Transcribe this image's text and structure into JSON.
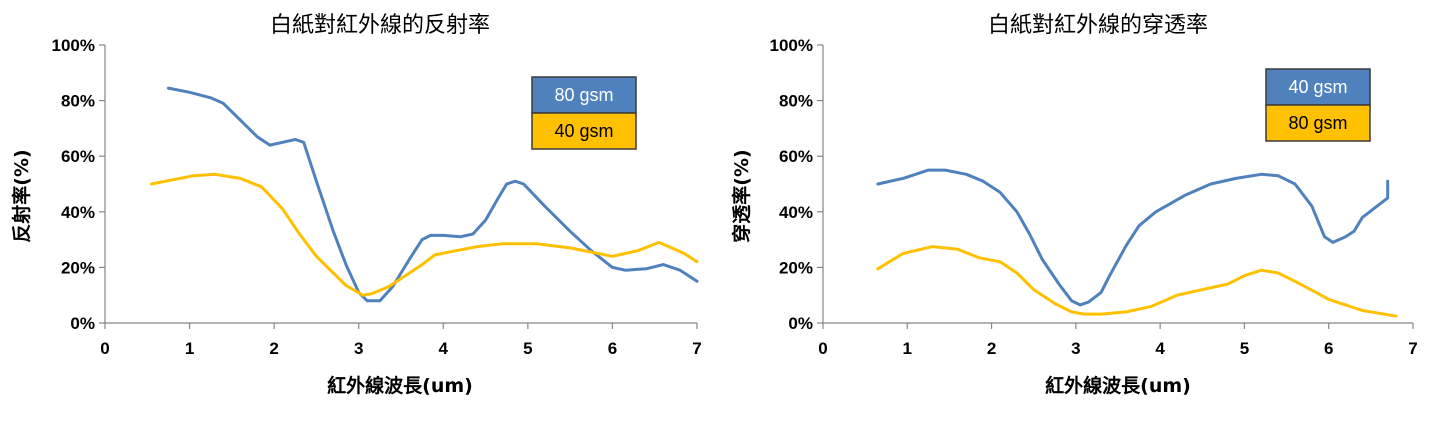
{
  "chart_data": [
    {
      "type": "line",
      "title": "白紙對紅外線的反射率",
      "xlabel": "紅外線波長(um)",
      "ylabel": "反射率(%)",
      "xlim": [
        0,
        7
      ],
      "ylim": [
        0,
        100
      ],
      "x_ticks": [
        "0",
        "1",
        "2",
        "3",
        "4",
        "5",
        "6",
        "7"
      ],
      "y_ticks": [
        "0%",
        "20%",
        "40%",
        "60%",
        "80%",
        "100%"
      ],
      "legend_position": "top-right",
      "legend": [
        "80 gsm",
        "40 gsm"
      ],
      "series": [
        {
          "name": "80 gsm",
          "color": "#4F81BD",
          "points": [
            [
              0.75,
              84.5
            ],
            [
              1.0,
              83
            ],
            [
              1.25,
              81
            ],
            [
              1.4,
              79
            ],
            [
              1.6,
              73
            ],
            [
              1.8,
              67
            ],
            [
              1.95,
              64
            ],
            [
              2.1,
              65
            ],
            [
              2.25,
              66
            ],
            [
              2.35,
              65
            ],
            [
              2.5,
              51
            ],
            [
              2.7,
              33
            ],
            [
              2.85,
              21
            ],
            [
              3.0,
              11
            ],
            [
              3.1,
              8
            ],
            [
              3.25,
              8
            ],
            [
              3.4,
              13
            ],
            [
              3.6,
              23
            ],
            [
              3.75,
              30
            ],
            [
              3.85,
              31.5
            ],
            [
              4.0,
              31.5
            ],
            [
              4.2,
              31
            ],
            [
              4.35,
              32
            ],
            [
              4.5,
              37
            ],
            [
              4.65,
              45
            ],
            [
              4.75,
              50
            ],
            [
              4.85,
              51
            ],
            [
              4.95,
              50
            ],
            [
              5.2,
              42
            ],
            [
              5.5,
              33
            ],
            [
              5.75,
              26
            ],
            [
              6.0,
              20
            ],
            [
              6.15,
              19
            ],
            [
              6.4,
              19.5
            ],
            [
              6.6,
              21
            ],
            [
              6.8,
              19
            ],
            [
              7.0,
              15
            ]
          ]
        },
        {
          "name": "40 gsm",
          "color": "#FFC000",
          "points": [
            [
              0.55,
              50
            ],
            [
              0.8,
              51.5
            ],
            [
              1.05,
              53
            ],
            [
              1.3,
              53.5
            ],
            [
              1.6,
              52
            ],
            [
              1.85,
              49
            ],
            [
              2.1,
              41
            ],
            [
              2.3,
              32
            ],
            [
              2.5,
              24
            ],
            [
              2.7,
              18
            ],
            [
              2.85,
              13.5
            ],
            [
              3.05,
              10
            ],
            [
              3.15,
              10.5
            ],
            [
              3.35,
              13
            ],
            [
              3.6,
              18
            ],
            [
              3.75,
              21
            ],
            [
              3.9,
              24.5
            ],
            [
              4.15,
              26
            ],
            [
              4.4,
              27.5
            ],
            [
              4.7,
              28.5
            ],
            [
              5.1,
              28.5
            ],
            [
              5.5,
              27
            ],
            [
              5.75,
              25.5
            ],
            [
              6.0,
              24
            ],
            [
              6.3,
              26
            ],
            [
              6.55,
              29
            ],
            [
              6.7,
              27
            ],
            [
              6.85,
              25
            ],
            [
              7.0,
              22
            ]
          ]
        }
      ]
    },
    {
      "type": "line",
      "title": "白紙對紅外線的穿透率",
      "xlabel": "紅外線波長(um)",
      "ylabel": "穿透率(%)",
      "xlim": [
        0,
        7
      ],
      "ylim": [
        0,
        100
      ],
      "x_ticks": [
        "0",
        "1",
        "2",
        "3",
        "4",
        "5",
        "6",
        "7"
      ],
      "y_ticks": [
        "0%",
        "20%",
        "40%",
        "60%",
        "80%",
        "100%"
      ],
      "legend_position": "top-right",
      "legend": [
        "40 gsm",
        "80 gsm"
      ],
      "series": [
        {
          "name": "40 gsm",
          "color": "#4F81BD",
          "points": [
            [
              0.65,
              50
            ],
            [
              0.95,
              52
            ],
            [
              1.25,
              55
            ],
            [
              1.45,
              55
            ],
            [
              1.7,
              53.5
            ],
            [
              1.9,
              51
            ],
            [
              2.1,
              47
            ],
            [
              2.3,
              40
            ],
            [
              2.45,
              32
            ],
            [
              2.6,
              23
            ],
            [
              2.8,
              14
            ],
            [
              2.95,
              8
            ],
            [
              3.05,
              6.5
            ],
            [
              3.15,
              7.5
            ],
            [
              3.3,
              11
            ],
            [
              3.4,
              17
            ],
            [
              3.6,
              28
            ],
            [
              3.75,
              35
            ],
            [
              3.95,
              40
            ],
            [
              4.3,
              46
            ],
            [
              4.6,
              50
            ],
            [
              4.9,
              52
            ],
            [
              5.2,
              53.5
            ],
            [
              5.4,
              53
            ],
            [
              5.6,
              50
            ],
            [
              5.8,
              42
            ],
            [
              5.95,
              31
            ],
            [
              6.05,
              29
            ],
            [
              6.2,
              31
            ],
            [
              6.3,
              33
            ],
            [
              6.4,
              38
            ],
            [
              6.7,
              45
            ],
            [
              6.7,
              51
            ]
          ]
        },
        {
          "name": "80 gsm",
          "color": "#FFC000",
          "points": [
            [
              0.65,
              19.5
            ],
            [
              0.95,
              25
            ],
            [
              1.3,
              27.5
            ],
            [
              1.6,
              26.5
            ],
            [
              1.85,
              23.5
            ],
            [
              2.1,
              22
            ],
            [
              2.3,
              18
            ],
            [
              2.5,
              12
            ],
            [
              2.75,
              7
            ],
            [
              2.95,
              4
            ],
            [
              3.1,
              3.2
            ],
            [
              3.3,
              3.2
            ],
            [
              3.6,
              4
            ],
            [
              3.9,
              6
            ],
            [
              4.2,
              10
            ],
            [
              4.5,
              12
            ],
            [
              4.8,
              14
            ],
            [
              5.0,
              17
            ],
            [
              5.2,
              19
            ],
            [
              5.4,
              18
            ],
            [
              5.6,
              15
            ],
            [
              5.85,
              11
            ],
            [
              6.0,
              8.5
            ],
            [
              6.2,
              6.5
            ],
            [
              6.4,
              4.5
            ],
            [
              6.6,
              3.5
            ],
            [
              6.8,
              2.5
            ]
          ]
        }
      ]
    }
  ]
}
